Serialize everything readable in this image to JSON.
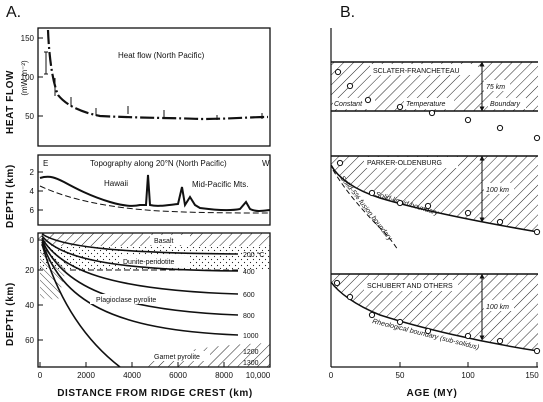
{
  "panelA": {
    "letter": "A.",
    "heat": {
      "title": "Heat flow (North Pacific)",
      "ylabel": "HEAT FLOW",
      "yunit": "(mW m⁻²)",
      "yticks": [
        "150",
        "100",
        "50"
      ]
    },
    "topo": {
      "title": "Topography along 20°N (North Pacific)",
      "ylabel": "DEPTH (km)",
      "yticks": [
        "2",
        "4",
        "6"
      ],
      "west": "W",
      "east": "E",
      "hawaii": "Hawaii",
      "midpac": "Mid-Pacific Mts."
    },
    "section": {
      "ylabel": "DEPTH (km)",
      "yticks": [
        "0",
        "20",
        "40",
        "60"
      ],
      "basalt": "Basalt",
      "dunite": "Dunite-peridotite",
      "plagio": "Plagioclase pyrolite",
      "garnet": "Garnet pyrolite",
      "isotherms": [
        "200 °C",
        "400",
        "600",
        "800",
        "1000",
        "1200",
        "1300"
      ]
    },
    "xlabel": "DISTANCE FROM RIDGE CREST (km)",
    "xticks": [
      "0",
      "2000",
      "4000",
      "6000",
      "8000",
      "10,000"
    ]
  },
  "panelB": {
    "letter": "B.",
    "model1": {
      "title": "SCLATER-FRANCHETEAU",
      "thickness": "75 km",
      "note_parts": [
        "Constant",
        "Temperature",
        "Boundary"
      ]
    },
    "model2": {
      "title": "PARKER-OLDENBURG",
      "thickness": "100 km",
      "boundary": "Solid-liquid boundary",
      "fusion": "Solid-5% fusion boundary"
    },
    "model3": {
      "title": "SCHUBERT AND OTHERS",
      "thickness": "100 km",
      "boundary": "Rheological boundary (sub-solidus)"
    },
    "xlabel": "AGE (MY)",
    "xticks": [
      "0",
      "50",
      "100",
      "150"
    ]
  }
}
